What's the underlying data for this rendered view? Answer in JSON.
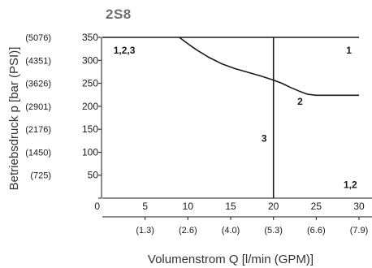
{
  "chart_data": {
    "type": "line",
    "title": "2S8",
    "xlabel": "Volumenstrom Q [l/min (GPM)]",
    "ylabel": "Betriebsdruck p [bar (PSI)]",
    "xlim": [
      0,
      30
    ],
    "ylim": [
      0,
      350
    ],
    "x_ticks": [
      0,
      5,
      10,
      15,
      20,
      25,
      30
    ],
    "x_tick_labels": [
      "0",
      "5",
      "10",
      "15",
      "20",
      "25",
      "30"
    ],
    "x_secondary_ticks": [
      5,
      10,
      15,
      20,
      25,
      30
    ],
    "x_secondary_labels": [
      "(1.3)",
      "(2.6)",
      "(4.0)",
      "(5.3)",
      "(6.6)",
      "(7.9)"
    ],
    "y_ticks": [
      50,
      100,
      150,
      200,
      250,
      300,
      350
    ],
    "y_tick_labels": [
      "50",
      "100",
      "150",
      "200",
      "250",
      "300",
      "350"
    ],
    "y_secondary_labels": [
      "(725)",
      "(1450)",
      "(2176)",
      "(2901)",
      "(3626)",
      "(4351)",
      "(5076)"
    ],
    "grid": false,
    "series": [
      {
        "name": "1",
        "x": [
          0,
          30
        ],
        "y": [
          350,
          350
        ]
      },
      {
        "name": "2",
        "x": [
          9,
          10,
          11,
          12.5,
          14,
          15.5,
          17,
          18.5,
          20,
          21,
          22,
          23,
          24,
          25,
          26,
          27,
          28,
          30
        ],
        "y": [
          350,
          336,
          323,
          306,
          292,
          282,
          274,
          266,
          257,
          250,
          241,
          233,
          226,
          224,
          224,
          224,
          224,
          224
        ]
      },
      {
        "name": "3",
        "x": [
          20,
          20
        ],
        "y": [
          0,
          350
        ]
      }
    ],
    "annotations": [
      {
        "text": "1,2,3",
        "x": 1.3,
        "y": 315
      },
      {
        "text": "1",
        "x": 28.5,
        "y": 315
      },
      {
        "text": "2",
        "x": 22.8,
        "y": 203
      },
      {
        "text": "3",
        "x": 18.6,
        "y": 123
      },
      {
        "text": "1,2",
        "x": 28.2,
        "y": 22
      }
    ]
  }
}
